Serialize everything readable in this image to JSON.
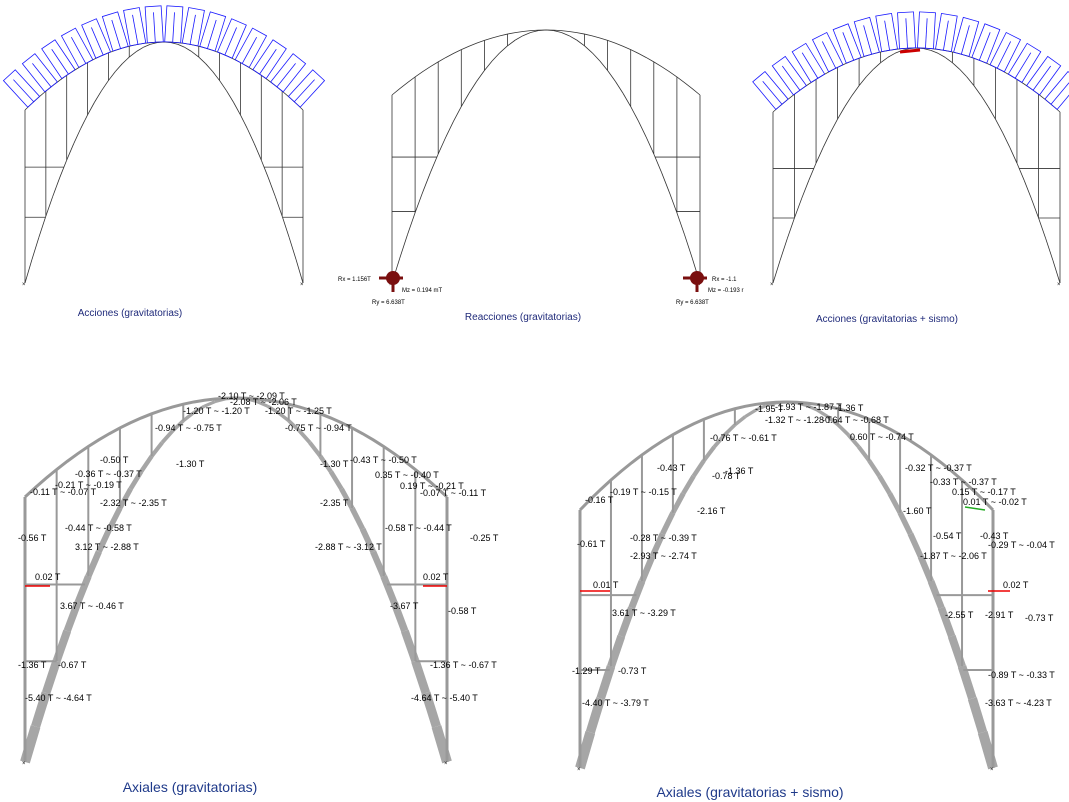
{
  "panels": [
    {
      "caption": "Acciones (gravitatorias)"
    },
    {
      "caption": "Reacciones (gravitatorias)",
      "labels": [
        "Rx = 1.156T",
        "Mz = 0.194 mT",
        "Ry = 6.638T",
        "Rx = -1.1",
        "Mz = -0.193 r",
        "Ry = 6.638T"
      ]
    },
    {
      "caption": "Acciones (gravitatorias + sismo)"
    },
    {
      "caption": "Axiales (gravitatorias)",
      "labels": [
        "-2.10 T ~ -2.09 T",
        "-2.08 T ~ -2.06 T",
        "-1.20 T ~ -1.20 T",
        "-1.20 T ~ -1.25 T",
        "-0.94 T ~ -0.75 T",
        "-0.75 T ~ -0.94 T",
        "-0.50 T",
        "-1.30 T",
        "-1.30 T",
        "-0.43 T ~ -0.50 T",
        "-0.36 T ~ -0.37 T",
        "0.35 T ~ -0.40 T",
        "-0.21 T ~ -0.19 T",
        "0.19 T ~ -0.21 T",
        "-0.11 T ~ -0.07 T",
        "-0.07 T ~ -0.11 T",
        "-2.32 T ~ -2.35 T",
        "-2.35 T",
        "-0.44 T ~ -0.58 T",
        "-0.58 T ~ -0.44 T",
        "-0.56 T",
        "-0.25 T",
        "3.12 T ~ -2.88 T",
        "-2.88 T ~ -3.12 T",
        "0.02 T",
        "0.02 T",
        "3.67 T ~ -0.46 T",
        "-3.67 T",
        "-0.58 T",
        "-1.36 T",
        "-0.67 T",
        "-1.36 T ~ -0.67 T",
        "-5.40 T ~ -4.64 T",
        "-4.64 T ~ -5.40 T"
      ]
    },
    {
      "caption": "Axiales (gravitatorias + sismo)",
      "labels": [
        "-1.93 T ~ -1.87 T",
        "-1.95 T",
        "-1.36 T",
        "-1.32 T ~ -1.28 T",
        "-0.64 T ~ -0.68 T",
        "-0.76 T ~ -0.61 T",
        "0.60 T ~ -0.74 T",
        "-0.43 T",
        "-0.78 T",
        "-1.36 T",
        "-0.32 T ~ -0.37 T",
        "-0.16 T",
        "-0.19 T ~ -0.15 T",
        "-0.33 T ~ -0.37 T",
        "0.15 T ~ -0.17 T",
        "0.01 T ~ -0.02 T",
        "-2.16 T",
        "-1.60 T",
        "-0.28 T ~ -0.39 T",
        "-0.54 T",
        "-0.43 T",
        "-0.29 T ~ -0.04 T",
        "-0.61 T",
        "-2.93 T ~ -2.74 T",
        "-1.87 T ~ -2.06 T",
        "0.01 T",
        "0.02 T",
        "3.61 T ~ -3.29 T",
        "-2.55 T",
        "-2.91 T",
        "-0.73 T",
        "-1.29 T",
        "-0.73 T",
        "-0.89 T ~ -0.33 T",
        "-4.40 T ~ -3.79 T",
        "-3.63 T ~ -4.23 T"
      ]
    }
  ]
}
